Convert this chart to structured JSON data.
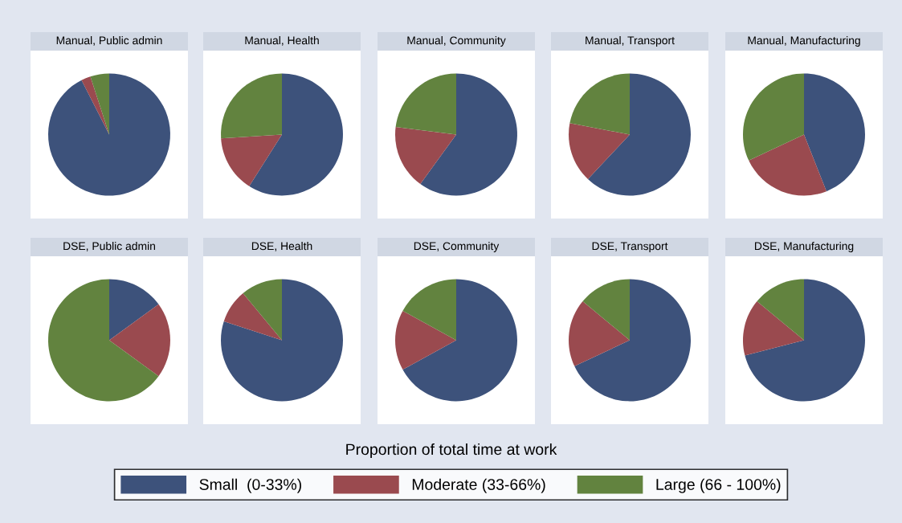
{
  "chart_data": [
    {
      "type": "pie",
      "title": "Manual, Public admin",
      "categories": [
        "Small  (0-33%)",
        "Moderate (33-66%)",
        "Large (66 - 100%)"
      ],
      "values": [
        92.5,
        2.5,
        5
      ],
      "colors": [
        "#3d527b",
        "#9a4a4f",
        "#62833f"
      ],
      "legend": "bottom",
      "annotations": [
        "Proportion of total time at work"
      ]
    },
    {
      "type": "pie",
      "title": "Manual, Health",
      "values": [
        59,
        15,
        26
      ],
      "colors": [
        "#3d527b",
        "#9a4a4f",
        "#62833f"
      ]
    },
    {
      "type": "pie",
      "title": "Manual, Community",
      "values": [
        60,
        17,
        23
      ],
      "colors": [
        "#3d527b",
        "#9a4a4f",
        "#62833f"
      ]
    },
    {
      "type": "pie",
      "title": "Manual, Transport",
      "values": [
        62,
        16,
        22
      ],
      "colors": [
        "#3d527b",
        "#9a4a4f",
        "#62833f"
      ]
    },
    {
      "type": "pie",
      "title": "Manual, Manufacturing",
      "values": [
        44,
        24,
        32
      ],
      "colors": [
        "#3d527b",
        "#9a4a4f",
        "#62833f"
      ]
    },
    {
      "type": "pie",
      "title": "DSE, Public admin",
      "values": [
        15,
        20,
        65
      ],
      "colors": [
        "#3d527b",
        "#9a4a4f",
        "#62833f"
      ]
    },
    {
      "type": "pie",
      "title": "DSE, Health",
      "values": [
        80,
        9,
        11
      ],
      "colors": [
        "#3d527b",
        "#9a4a4f",
        "#62833f"
      ]
    },
    {
      "type": "pie",
      "title": "DSE, Community",
      "values": [
        67,
        16,
        17
      ],
      "colors": [
        "#3d527b",
        "#9a4a4f",
        "#62833f"
      ]
    },
    {
      "type": "pie",
      "title": "DSE, Transport",
      "values": [
        68,
        18,
        14
      ],
      "colors": [
        "#3d527b",
        "#9a4a4f",
        "#62833f"
      ]
    },
    {
      "type": "pie",
      "title": "DSE, Manufacturing",
      "values": [
        71,
        15,
        14
      ],
      "colors": [
        "#3d527b",
        "#9a4a4f",
        "#62833f"
      ]
    }
  ]
}
